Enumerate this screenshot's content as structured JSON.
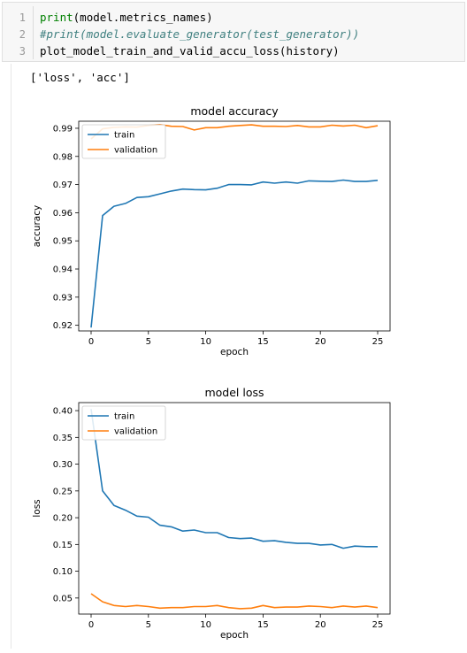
{
  "cell": {
    "line_numbers": [
      "1",
      "2",
      "3"
    ],
    "line1": {
      "fn": "print",
      "rest": "(model.metrics_names)"
    },
    "line2": "#print(model.evaluate_generator(test_generator))",
    "line3": "plot_model_train_and_valid_accu_loss(history)"
  },
  "output_text": "['loss', 'acc']",
  "colors": {
    "train": "#1f77b4",
    "validation": "#ff7f0e"
  },
  "chart_data": [
    {
      "type": "line",
      "title": "model accuracy",
      "xlabel": "epoch",
      "ylabel": "accuracy",
      "xlim": [
        0,
        25
      ],
      "ylim": [
        0.918,
        0.9925
      ],
      "xticks": [
        0,
        5,
        10,
        15,
        20,
        25
      ],
      "yticks": [
        0.92,
        0.93,
        0.94,
        0.95,
        0.96,
        0.97,
        0.98,
        0.99
      ],
      "ytick_labels": [
        "0.92",
        "0.93",
        "0.94",
        "0.95",
        "0.96",
        "0.97",
        "0.98",
        "0.99"
      ],
      "legend_loc": "upper left",
      "series": [
        {
          "name": "train",
          "x": [
            0,
            1,
            2,
            3,
            4,
            5,
            6,
            7,
            8,
            9,
            10,
            11,
            12,
            13,
            14,
            15,
            16,
            17,
            18,
            19,
            20,
            21,
            22,
            23,
            24,
            25
          ],
          "values": [
            0.9192,
            0.959,
            0.9623,
            0.9633,
            0.9654,
            0.9657,
            0.9667,
            0.9677,
            0.9684,
            0.9682,
            0.9681,
            0.9687,
            0.97,
            0.97,
            0.9699,
            0.9709,
            0.9705,
            0.9709,
            0.9705,
            0.9713,
            0.9712,
            0.9711,
            0.9716,
            0.9711,
            0.9711,
            0.9715
          ]
        },
        {
          "name": "validation",
          "x": [
            0,
            1,
            2,
            3,
            4,
            5,
            6,
            7,
            8,
            9,
            10,
            11,
            12,
            13,
            14,
            15,
            16,
            17,
            18,
            19,
            20,
            21,
            22,
            23,
            24,
            25
          ],
          "values": [
            0.9862,
            0.9898,
            0.9903,
            0.9905,
            0.9904,
            0.991,
            0.9913,
            0.9907,
            0.9906,
            0.9894,
            0.9902,
            0.9902,
            0.9907,
            0.991,
            0.9912,
            0.9907,
            0.9907,
            0.9906,
            0.991,
            0.9905,
            0.9905,
            0.9911,
            0.9908,
            0.9911,
            0.9902,
            0.9909
          ]
        }
      ]
    },
    {
      "type": "line",
      "title": "model loss",
      "xlabel": "epoch",
      "ylabel": "loss",
      "xlim": [
        0,
        25
      ],
      "ylim": [
        0.02,
        0.415
      ],
      "xticks": [
        0,
        5,
        10,
        15,
        20,
        25
      ],
      "yticks": [
        0.05,
        0.1,
        0.15,
        0.2,
        0.25,
        0.3,
        0.35,
        0.4
      ],
      "ytick_labels": [
        "0.05",
        "0.10",
        "0.15",
        "0.20",
        "0.25",
        "0.30",
        "0.35",
        "0.40"
      ],
      "legend_loc": "upper left",
      "series": [
        {
          "name": "train",
          "x": [
            0,
            1,
            2,
            3,
            4,
            5,
            6,
            7,
            8,
            9,
            10,
            11,
            12,
            13,
            14,
            15,
            16,
            17,
            18,
            19,
            20,
            21,
            22,
            23,
            24,
            25
          ],
          "values": [
            0.403,
            0.25,
            0.223,
            0.214,
            0.203,
            0.201,
            0.186,
            0.183,
            0.175,
            0.177,
            0.172,
            0.172,
            0.163,
            0.161,
            0.162,
            0.156,
            0.157,
            0.154,
            0.152,
            0.152,
            0.149,
            0.15,
            0.143,
            0.147,
            0.146,
            0.146
          ]
        },
        {
          "name": "validation",
          "x": [
            0,
            1,
            2,
            3,
            4,
            5,
            6,
            7,
            8,
            9,
            10,
            11,
            12,
            13,
            14,
            15,
            16,
            17,
            18,
            19,
            20,
            21,
            22,
            23,
            24,
            25
          ],
          "values": [
            0.058,
            0.043,
            0.036,
            0.034,
            0.036,
            0.034,
            0.031,
            0.032,
            0.032,
            0.034,
            0.034,
            0.036,
            0.032,
            0.03,
            0.031,
            0.036,
            0.032,
            0.033,
            0.033,
            0.035,
            0.034,
            0.032,
            0.035,
            0.033,
            0.035,
            0.032
          ]
        }
      ]
    }
  ]
}
